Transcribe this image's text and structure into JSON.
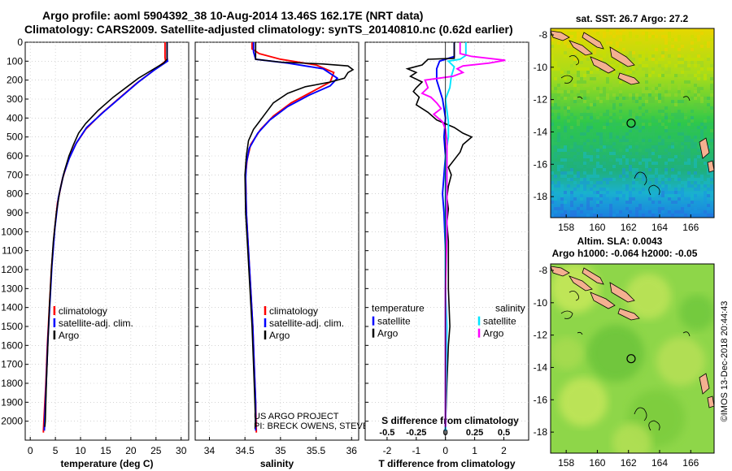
{
  "header": {
    "title_line1": "Argo profile: aoml 5904392_38 10-Aug-2014 13.46S 162.17E (NRT data)",
    "title_line2": "Climatology: CARS2009. Satellite-adjusted climatology: synTS_20140810.nc (0.62d earlier)"
  },
  "colors": {
    "climatology": "#ff0000",
    "satellite": "#0000ff",
    "argo": "#000000",
    "sat_salinity": "#00e5ff",
    "argo_salinity": "#ff00ff"
  },
  "chart_data": [
    {
      "type": "line",
      "panel": "temperature",
      "xlabel": "temperature (deg C)",
      "ylabel": "",
      "xlim": [
        -1,
        31.5
      ],
      "ylim": [
        2100,
        0
      ],
      "xticks": [
        0,
        5,
        10,
        15,
        20,
        25,
        30
      ],
      "yticks": [
        0,
        100,
        200,
        300,
        400,
        500,
        600,
        700,
        800,
        900,
        1000,
        1100,
        1200,
        1300,
        1400,
        1500,
        1600,
        1700,
        1800,
        1900,
        2000
      ],
      "legend": [
        "climatology",
        "satellite-adj. clim.",
        "Argo"
      ],
      "series": [
        {
          "name": "climatology",
          "color": "#ff0000",
          "points": [
            [
              26.8,
              0
            ],
            [
              26.8,
              80
            ],
            [
              26.9,
              100
            ],
            [
              24,
              160
            ],
            [
              21,
              220
            ],
            [
              17.5,
              300
            ],
            [
              14,
              380
            ],
            [
              11,
              460
            ],
            [
              9,
              540
            ],
            [
              7.6,
              620
            ],
            [
              6.4,
              720
            ],
            [
              5.4,
              850
            ],
            [
              4.8,
              1000
            ],
            [
              4.2,
              1200
            ],
            [
              3.8,
              1400
            ],
            [
              3.4,
              1600
            ],
            [
              3.1,
              1800
            ],
            [
              2.7,
              2000
            ],
            [
              2.6,
              2060
            ]
          ]
        },
        {
          "name": "satellite-adj. clim.",
          "color": "#0000ff",
          "points": [
            [
              27.2,
              0
            ],
            [
              27.2,
              80
            ],
            [
              27.3,
              100
            ],
            [
              24.5,
              150
            ],
            [
              21.5,
              210
            ],
            [
              18,
              290
            ],
            [
              14.5,
              370
            ],
            [
              11.2,
              450
            ],
            [
              9.2,
              530
            ],
            [
              7.8,
              610
            ],
            [
              6.6,
              700
            ],
            [
              5.6,
              820
            ],
            [
              4.9,
              980
            ],
            [
              4.3,
              1180
            ],
            [
              3.9,
              1380
            ],
            [
              3.5,
              1580
            ],
            [
              3.2,
              1780
            ],
            [
              2.9,
              1980
            ],
            [
              2.8,
              2050
            ]
          ]
        },
        {
          "name": "Argo",
          "color": "#000000",
          "points": [
            [
              27.2,
              0
            ],
            [
              27.2,
              90
            ],
            [
              26.5,
              110
            ],
            [
              24,
              150
            ],
            [
              21.5,
              190
            ],
            [
              19.5,
              230
            ],
            [
              16.5,
              290
            ],
            [
              13.5,
              360
            ],
            [
              11,
              430
            ],
            [
              9.6,
              480
            ],
            [
              8.6,
              540
            ],
            [
              7.7,
              600
            ],
            [
              6.8,
              680
            ],
            [
              5.9,
              780
            ],
            [
              5.2,
              900
            ],
            [
              4.6,
              1050
            ],
            [
              4.2,
              1200
            ],
            [
              3.8,
              1400
            ],
            [
              3.5,
              1600
            ],
            [
              3.2,
              1800
            ],
            [
              3,
              2000
            ],
            [
              2.9,
              2030
            ]
          ]
        }
      ]
    },
    {
      "type": "line",
      "panel": "salinity",
      "xlabel": "salinity",
      "xlim": [
        33.8,
        36.1
      ],
      "ylim": [
        2100,
        0
      ],
      "xticks": [
        34,
        34.5,
        35,
        35.5,
        36
      ],
      "xtick_labels": [
        "34",
        "34.5",
        "35",
        "35.5",
        "36"
      ],
      "legend": [
        "climatology",
        "satellite-adj. clim.",
        "Argo"
      ],
      "annotation": [
        "US ARGO PROJECT",
        "PI: BRECK OWENS, STEVE JAYNE, P.E. ROBBINS"
      ],
      "series": [
        {
          "name": "climatology",
          "color": "#ff0000",
          "points": [
            [
              34.6,
              0
            ],
            [
              34.6,
              35
            ],
            [
              34.7,
              60
            ],
            [
              35,
              90
            ],
            [
              35.5,
              120
            ],
            [
              35.75,
              160
            ],
            [
              35.7,
              210
            ],
            [
              35.45,
              260
            ],
            [
              35.15,
              320
            ],
            [
              34.9,
              390
            ],
            [
              34.72,
              460
            ],
            [
              34.58,
              540
            ],
            [
              34.53,
              620
            ],
            [
              34.51,
              700
            ],
            [
              34.52,
              900
            ],
            [
              34.55,
              1100
            ],
            [
              34.58,
              1300
            ],
            [
              34.61,
              1500
            ],
            [
              34.63,
              1700
            ],
            [
              34.65,
              1900
            ],
            [
              34.66,
              2060
            ]
          ]
        },
        {
          "name": "satellite-adj. clim.",
          "color": "#0000ff",
          "points": [
            [
              34.62,
              0
            ],
            [
              34.62,
              50
            ],
            [
              34.65,
              90
            ],
            [
              35.1,
              110
            ],
            [
              35.6,
              140
            ],
            [
              35.8,
              190
            ],
            [
              35.7,
              230
            ],
            [
              35.4,
              280
            ],
            [
              35.1,
              340
            ],
            [
              34.85,
              410
            ],
            [
              34.68,
              480
            ],
            [
              34.56,
              560
            ],
            [
              34.52,
              640
            ],
            [
              34.51,
              720
            ],
            [
              34.52,
              900
            ],
            [
              34.55,
              1100
            ],
            [
              34.58,
              1300
            ],
            [
              34.61,
              1500
            ],
            [
              34.63,
              1700
            ],
            [
              34.65,
              1900
            ],
            [
              34.65,
              2050
            ]
          ]
        },
        {
          "name": "Argo",
          "color": "#000000",
          "points": [
            [
              34.65,
              0
            ],
            [
              34.65,
              90
            ],
            [
              35,
              105
            ],
            [
              35.6,
              115
            ],
            [
              35.95,
              125
            ],
            [
              36.02,
              145
            ],
            [
              35.95,
              160
            ],
            [
              35.9,
              190
            ],
            [
              35.7,
              210
            ],
            [
              35.35,
              235
            ],
            [
              35.1,
              270
            ],
            [
              34.9,
              320
            ],
            [
              34.78,
              380
            ],
            [
              34.7,
              420
            ],
            [
              34.62,
              460
            ],
            [
              34.55,
              520
            ],
            [
              34.52,
              600
            ],
            [
              34.5,
              700
            ],
            [
              34.51,
              900
            ],
            [
              34.54,
              1100
            ],
            [
              34.57,
              1300
            ],
            [
              34.6,
              1500
            ],
            [
              34.62,
              1700
            ],
            [
              34.64,
              1900
            ],
            [
              34.65,
              2030
            ]
          ]
        }
      ]
    },
    {
      "type": "line",
      "panel": "difference",
      "xlabel": "T difference from climatology",
      "top_label": "S difference from climatology",
      "xlim": [
        -2.75,
        2.85
      ],
      "ylim": [
        2100,
        0
      ],
      "xticks": [
        -2,
        -1,
        0,
        1,
        2
      ],
      "s_ticks": [
        -0.5,
        -0.25,
        0,
        0.25,
        0.5
      ],
      "s_tick_labels": [
        "-0.5",
        "-0.25",
        "0",
        "0.25",
        "0.5"
      ],
      "legend_temperature": {
        "title": "temperature",
        "items": [
          "satellite",
          "Argo"
        ]
      },
      "legend_salinity": {
        "title": "salinity",
        "items": [
          "satellite",
          "Argo"
        ]
      },
      "series": [
        {
          "name": "T satellite",
          "color": "#0000ff",
          "points": [
            [
              0.3,
              0
            ],
            [
              0.3,
              75
            ],
            [
              -0.2,
              100
            ],
            [
              -0.3,
              140
            ],
            [
              -0.3,
              200
            ],
            [
              -0.1,
              300
            ],
            [
              0,
              400
            ],
            [
              -0.05,
              500
            ],
            [
              0,
              600
            ],
            [
              -0.05,
              700
            ],
            [
              -0.1,
              800
            ],
            [
              -0.05,
              900
            ],
            [
              0,
              1100
            ],
            [
              0,
              2050
            ]
          ]
        },
        {
          "name": "T Argo",
          "color": "#000000",
          "points": [
            [
              0.3,
              0
            ],
            [
              0.3,
              85
            ],
            [
              -0.6,
              90
            ],
            [
              -0.8,
              120
            ],
            [
              -1.3,
              140
            ],
            [
              -1,
              160
            ],
            [
              -1.2,
              180
            ],
            [
              -0.8,
              210
            ],
            [
              -1,
              240
            ],
            [
              -1.1,
              260
            ],
            [
              -0.9,
              290
            ],
            [
              -1,
              330
            ],
            [
              -0.6,
              370
            ],
            [
              -0.3,
              410
            ],
            [
              0.3,
              450
            ],
            [
              0.6,
              480
            ],
            [
              0.9,
              500
            ],
            [
              0.6,
              540
            ],
            [
              0.5,
              580
            ],
            [
              0.3,
              620
            ],
            [
              0.1,
              660
            ],
            [
              0.2,
              700
            ],
            [
              0.1,
              760
            ],
            [
              0.05,
              820
            ],
            [
              0.1,
              880
            ],
            [
              0.05,
              950
            ],
            [
              0.1,
              1050
            ],
            [
              0.1,
              1300
            ],
            [
              0.15,
              1500
            ],
            [
              0.1,
              1600
            ],
            [
              0.05,
              1800
            ],
            [
              0,
              2030
            ]
          ]
        },
        {
          "name": "S satellite",
          "color": "#00e5ff",
          "points": [
            [
              0.7,
              0
            ],
            [
              0.7,
              70
            ],
            [
              0.5,
              90
            ],
            [
              0.1,
              100
            ],
            [
              0.3,
              130
            ],
            [
              0.2,
              180
            ],
            [
              0.15,
              240
            ],
            [
              0,
              300
            ],
            [
              0.05,
              360
            ],
            [
              0.1,
              420
            ],
            [
              0.1,
              500
            ],
            [
              0,
              600
            ],
            [
              0,
              700
            ],
            [
              0,
              900
            ],
            [
              0,
              1100
            ],
            [
              0,
              1300
            ],
            [
              0.05,
              1500
            ],
            [
              0,
              2050
            ]
          ]
        },
        {
          "name": "S Argo",
          "color": "#ff00ff",
          "points": [
            [
              0.5,
              0
            ],
            [
              0.5,
              60
            ],
            [
              0.9,
              75
            ],
            [
              2.05,
              95
            ],
            [
              1.5,
              110
            ],
            [
              0.6,
              125
            ],
            [
              0.4,
              140
            ],
            [
              0.6,
              160
            ],
            [
              0.25,
              180
            ],
            [
              -0.7,
              200
            ],
            [
              -0.6,
              240
            ],
            [
              -0.8,
              270
            ],
            [
              -0.5,
              290
            ],
            [
              -0.3,
              320
            ],
            [
              -0.15,
              350
            ],
            [
              -0.4,
              380
            ],
            [
              -0.1,
              420
            ],
            [
              0,
              460
            ],
            [
              0.05,
              520
            ],
            [
              0.05,
              700
            ],
            [
              0.05,
              1000
            ],
            [
              0,
              1300
            ],
            [
              0,
              1500
            ],
            [
              0,
              2030
            ]
          ]
        }
      ]
    },
    {
      "type": "heatmap",
      "panel": "sst_map",
      "title": "sat. SST: 26.7 Argo: 27.2",
      "xticks": [
        158,
        160,
        162,
        164,
        166
      ],
      "yticks": [
        -8,
        -10,
        -12,
        -14,
        -16,
        -18
      ],
      "xlim": [
        157,
        167.5
      ],
      "ylim": [
        -19.3,
        -7.6
      ],
      "marker": [
        162.17,
        -13.46
      ]
    },
    {
      "type": "heatmap",
      "panel": "sla_map",
      "title": "Altim. SLA: 0.0043",
      "subtitle": "Argo h1000: -0.064 h2000: -0.05",
      "xticks": [
        158,
        160,
        162,
        164,
        166
      ],
      "yticks": [
        -8,
        -10,
        -12,
        -14,
        -16,
        -18
      ],
      "xlim": [
        157,
        167.5
      ],
      "ylim": [
        -19.3,
        -7.6
      ],
      "marker": [
        162.17,
        -13.46
      ]
    }
  ],
  "watermark": "©IMOS 13-Dec-2018 20:44:43"
}
